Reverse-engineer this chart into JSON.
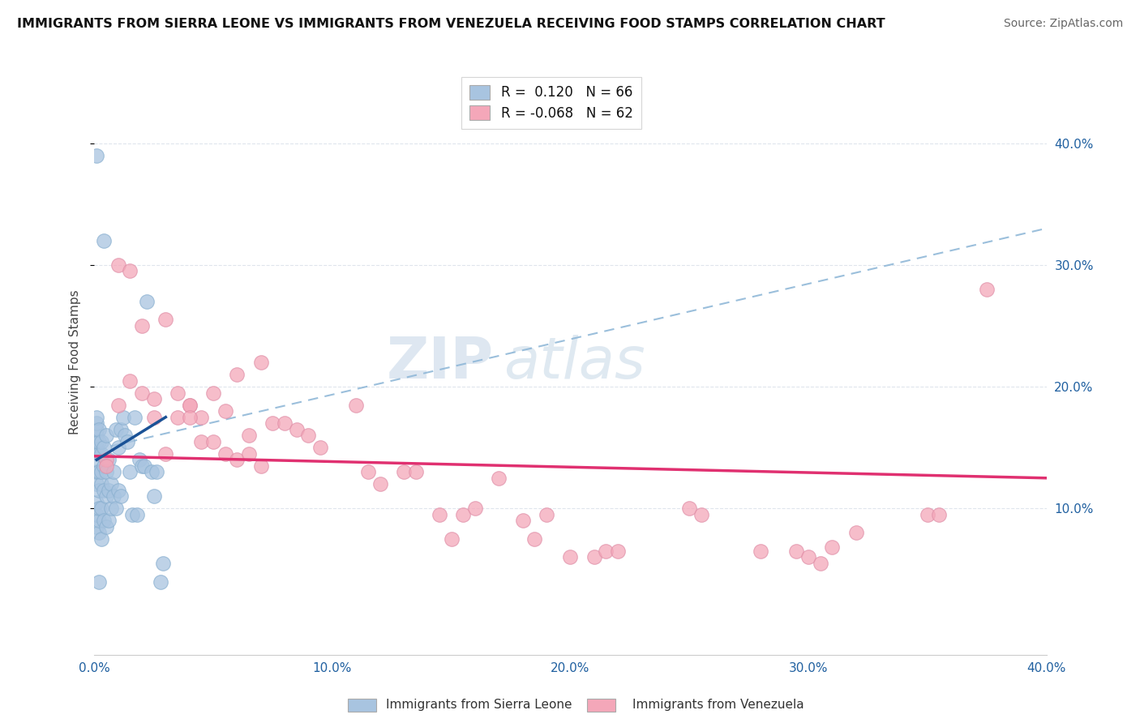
{
  "title": "IMMIGRANTS FROM SIERRA LEONE VS IMMIGRANTS FROM VENEZUELA RECEIVING FOOD STAMPS CORRELATION CHART",
  "source": "Source: ZipAtlas.com",
  "ylabel": "Receiving Food Stamps",
  "legend_label1": "Immigrants from Sierra Leone",
  "legend_label2": "Immigrants from Venezuela",
  "R1": 0.12,
  "N1": 66,
  "R2": -0.068,
  "N2": 62,
  "color_sl": "#a8c4e0",
  "color_vz": "#f4a7b9",
  "color_sl_line": "#1a5296",
  "color_vz_line": "#e03070",
  "color_dashed_line": "#90b8d8",
  "xlim": [
    0.0,
    0.4
  ],
  "ylim": [
    -0.02,
    0.46
  ],
  "xticks": [
    0.0,
    0.1,
    0.2,
    0.3,
    0.4
  ],
  "yticks_right": [
    0.1,
    0.2,
    0.3,
    0.4
  ],
  "ytick_labels_right": [
    "10.0%",
    "20.0%",
    "30.0%",
    "40.0%"
  ],
  "xtick_labels": [
    "0.0%",
    "10.0%",
    "20.0%",
    "30.0%",
    "40.0%"
  ],
  "watermark_zip": "ZIP",
  "watermark_atlas": "atlas",
  "background_color": "#ffffff",
  "grid_color": "#d8dfe8",
  "sl_line_x": [
    0.001,
    0.03
  ],
  "sl_line_y": [
    0.14,
    0.175
  ],
  "vz_line_x": [
    0.0,
    0.4
  ],
  "vz_line_y": [
    0.143,
    0.125
  ],
  "dashed_line_x": [
    0.0,
    0.4
  ],
  "dashed_line_y": [
    0.148,
    0.33
  ],
  "sierra_leone_pts": [
    [
      0.001,
      0.085
    ],
    [
      0.001,
      0.095
    ],
    [
      0.001,
      0.105
    ],
    [
      0.001,
      0.12
    ],
    [
      0.001,
      0.13
    ],
    [
      0.001,
      0.14
    ],
    [
      0.001,
      0.15
    ],
    [
      0.001,
      0.155
    ],
    [
      0.001,
      0.16
    ],
    [
      0.001,
      0.165
    ],
    [
      0.001,
      0.17
    ],
    [
      0.001,
      0.175
    ],
    [
      0.002,
      0.08
    ],
    [
      0.002,
      0.09
    ],
    [
      0.002,
      0.1
    ],
    [
      0.002,
      0.115
    ],
    [
      0.002,
      0.13
    ],
    [
      0.002,
      0.145
    ],
    [
      0.002,
      0.155
    ],
    [
      0.002,
      0.165
    ],
    [
      0.003,
      0.075
    ],
    [
      0.003,
      0.1
    ],
    [
      0.003,
      0.12
    ],
    [
      0.003,
      0.13
    ],
    [
      0.003,
      0.145
    ],
    [
      0.003,
      0.155
    ],
    [
      0.004,
      0.09
    ],
    [
      0.004,
      0.115
    ],
    [
      0.004,
      0.135
    ],
    [
      0.004,
      0.15
    ],
    [
      0.005,
      0.085
    ],
    [
      0.005,
      0.11
    ],
    [
      0.005,
      0.13
    ],
    [
      0.005,
      0.16
    ],
    [
      0.006,
      0.09
    ],
    [
      0.006,
      0.115
    ],
    [
      0.006,
      0.14
    ],
    [
      0.007,
      0.1
    ],
    [
      0.007,
      0.12
    ],
    [
      0.008,
      0.11
    ],
    [
      0.008,
      0.13
    ],
    [
      0.009,
      0.1
    ],
    [
      0.009,
      0.165
    ],
    [
      0.01,
      0.115
    ],
    [
      0.01,
      0.15
    ],
    [
      0.011,
      0.11
    ],
    [
      0.011,
      0.165
    ],
    [
      0.012,
      0.175
    ],
    [
      0.013,
      0.16
    ],
    [
      0.014,
      0.155
    ],
    [
      0.015,
      0.13
    ],
    [
      0.016,
      0.095
    ],
    [
      0.017,
      0.175
    ],
    [
      0.018,
      0.095
    ],
    [
      0.019,
      0.14
    ],
    [
      0.02,
      0.135
    ],
    [
      0.021,
      0.135
    ],
    [
      0.022,
      0.27
    ],
    [
      0.024,
      0.13
    ],
    [
      0.025,
      0.11
    ],
    [
      0.026,
      0.13
    ],
    [
      0.028,
      0.04
    ],
    [
      0.029,
      0.055
    ],
    [
      0.001,
      0.39
    ],
    [
      0.004,
      0.32
    ],
    [
      0.002,
      0.04
    ]
  ],
  "venezuela_pts": [
    [
      0.01,
      0.3
    ],
    [
      0.015,
      0.295
    ],
    [
      0.02,
      0.25
    ],
    [
      0.025,
      0.175
    ],
    [
      0.03,
      0.255
    ],
    [
      0.035,
      0.195
    ],
    [
      0.04,
      0.185
    ],
    [
      0.04,
      0.185
    ],
    [
      0.045,
      0.175
    ],
    [
      0.05,
      0.195
    ],
    [
      0.055,
      0.18
    ],
    [
      0.06,
      0.21
    ],
    [
      0.065,
      0.16
    ],
    [
      0.07,
      0.22
    ],
    [
      0.075,
      0.17
    ],
    [
      0.08,
      0.17
    ],
    [
      0.085,
      0.165
    ],
    [
      0.09,
      0.16
    ],
    [
      0.095,
      0.15
    ],
    [
      0.01,
      0.185
    ],
    [
      0.015,
      0.205
    ],
    [
      0.02,
      0.195
    ],
    [
      0.025,
      0.19
    ],
    [
      0.03,
      0.145
    ],
    [
      0.035,
      0.175
    ],
    [
      0.04,
      0.175
    ],
    [
      0.045,
      0.155
    ],
    [
      0.05,
      0.155
    ],
    [
      0.055,
      0.145
    ],
    [
      0.06,
      0.14
    ],
    [
      0.065,
      0.145
    ],
    [
      0.07,
      0.135
    ],
    [
      0.11,
      0.185
    ],
    [
      0.115,
      0.13
    ],
    [
      0.12,
      0.12
    ],
    [
      0.13,
      0.13
    ],
    [
      0.135,
      0.13
    ],
    [
      0.145,
      0.095
    ],
    [
      0.15,
      0.075
    ],
    [
      0.155,
      0.095
    ],
    [
      0.16,
      0.1
    ],
    [
      0.17,
      0.125
    ],
    [
      0.18,
      0.09
    ],
    [
      0.185,
      0.075
    ],
    [
      0.19,
      0.095
    ],
    [
      0.2,
      0.06
    ],
    [
      0.21,
      0.06
    ],
    [
      0.215,
      0.065
    ],
    [
      0.22,
      0.065
    ],
    [
      0.25,
      0.1
    ],
    [
      0.255,
      0.095
    ],
    [
      0.28,
      0.065
    ],
    [
      0.295,
      0.065
    ],
    [
      0.3,
      0.06
    ],
    [
      0.305,
      0.055
    ],
    [
      0.31,
      0.068
    ],
    [
      0.32,
      0.08
    ],
    [
      0.35,
      0.095
    ],
    [
      0.355,
      0.095
    ],
    [
      0.375,
      0.28
    ],
    [
      0.005,
      0.14
    ],
    [
      0.005,
      0.135
    ]
  ]
}
